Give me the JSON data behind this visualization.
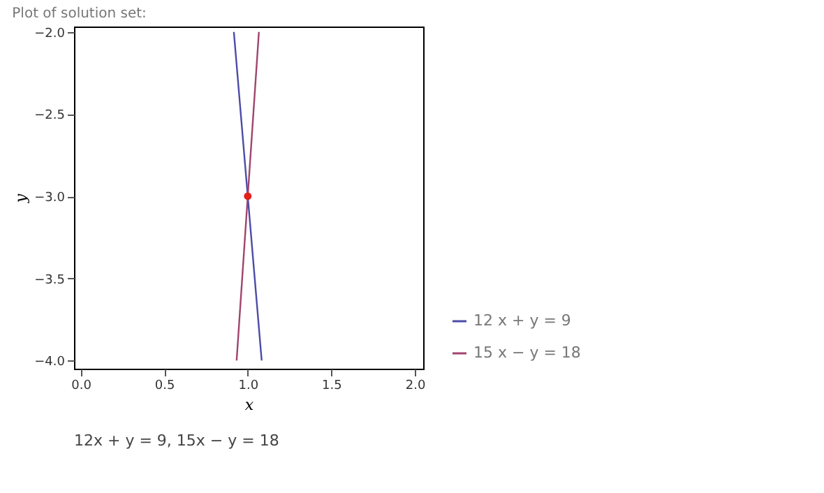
{
  "chart_data": {
    "type": "line",
    "title": "Plot of solution set:",
    "xlabel": "x",
    "ylabel": "y",
    "annotations": [
      "12x + y = 9, 15x − y = 18"
    ],
    "xlim": [
      -0.04,
      2.05
    ],
    "ylim": [
      -4.05,
      -1.967
    ],
    "xticks": [
      {
        "value": 0,
        "label": "0.0"
      },
      {
        "value": 0.5,
        "label": "0.5"
      },
      {
        "value": 1,
        "label": "1.0"
      },
      {
        "value": 1.5,
        "label": "1.5"
      },
      {
        "value": 2,
        "label": "2.0"
      }
    ],
    "yticks": [
      {
        "value": -4,
        "label": "−4.0"
      },
      {
        "value": -3.5,
        "label": "−3.5"
      },
      {
        "value": -3,
        "label": "−3.0"
      },
      {
        "value": -2.5,
        "label": "−2.5"
      },
      {
        "value": -2,
        "label": "−2.0"
      }
    ],
    "grid": false,
    "legend": "bottom right",
    "line_style": "solid",
    "marker": "none",
    "series": [
      {
        "name": "12 x + y = 9",
        "color": "#4b4ba8",
        "x": [
          0.9167,
          1.0833
        ],
        "values": [
          -2,
          -4
        ]
      },
      {
        "name": "15 x − y = 18",
        "color": "#a0446e",
        "x": [
          0.9333,
          1.0667
        ],
        "values": [
          -4,
          -2
        ]
      },
      {
        "type": "scatter",
        "color": "#e3201b",
        "x": [
          1
        ],
        "values": [
          -3
        ],
        "marker": "circle"
      }
    ]
  }
}
